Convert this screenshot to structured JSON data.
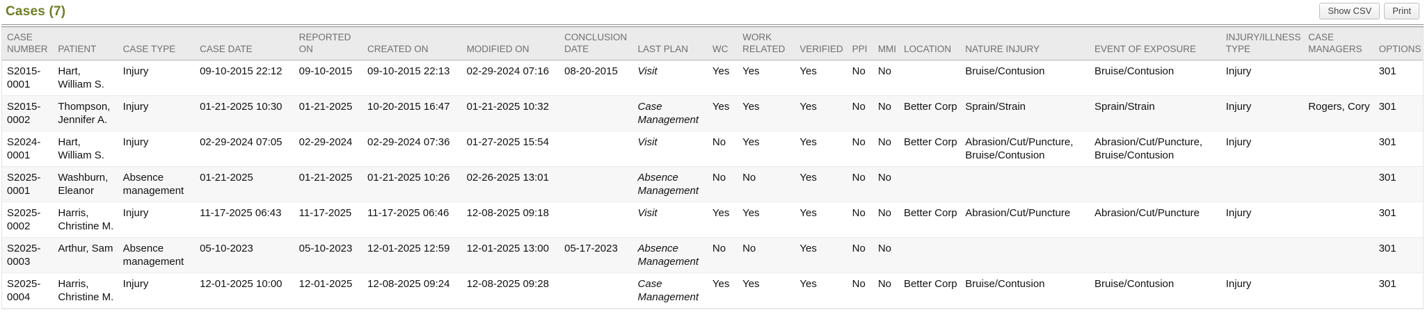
{
  "colors": {
    "title_accent": "#6e7d24"
  },
  "header": {
    "title": "Cases (7)",
    "buttons": [
      {
        "label": "Show CSV"
      },
      {
        "label": "Print"
      }
    ]
  },
  "table": {
    "columns": [
      {
        "key": "case_number",
        "label": "CASE NUMBER"
      },
      {
        "key": "patient",
        "label": "PATIENT"
      },
      {
        "key": "case_type",
        "label": "CASE TYPE"
      },
      {
        "key": "case_date",
        "label": "CASE DATE"
      },
      {
        "key": "reported_on",
        "label": "REPORTED ON"
      },
      {
        "key": "created_on",
        "label": "CREATED ON"
      },
      {
        "key": "modified_on",
        "label": "MODIFIED ON"
      },
      {
        "key": "conclusion_date",
        "label": "CONCLUSION DATE"
      },
      {
        "key": "last_plan",
        "label": "LAST PLAN"
      },
      {
        "key": "wc",
        "label": "WC"
      },
      {
        "key": "work_related",
        "label": "WORK RELATED"
      },
      {
        "key": "verified",
        "label": "VERIFIED"
      },
      {
        "key": "ppi",
        "label": "PPI"
      },
      {
        "key": "mmi",
        "label": "MMI"
      },
      {
        "key": "location",
        "label": "LOCATION"
      },
      {
        "key": "nature_injury",
        "label": "NATURE INJURY"
      },
      {
        "key": "event_of_exposure",
        "label": "EVENT OF EXPOSURE"
      },
      {
        "key": "injury_illness_type",
        "label": "INJURY/ILLNESS TYPE"
      },
      {
        "key": "case_managers",
        "label": "CASE MANAGERS"
      },
      {
        "key": "options",
        "label": "OPTIONS"
      }
    ],
    "rows": [
      {
        "case_number": "S2015-0001",
        "patient": "Hart, William S.",
        "case_type": "Injury",
        "case_date": "09-10-2015 22:12",
        "reported_on": "09-10-2015",
        "created_on": "09-10-2015 22:13",
        "modified_on": "02-29-2024 07:16",
        "conclusion_date": "08-20-2015",
        "last_plan": "Visit",
        "wc": "Yes",
        "work_related": "Yes",
        "verified": "Yes",
        "ppi": "No",
        "mmi": "No",
        "location": "",
        "nature_injury": "Bruise/Contusion",
        "event_of_exposure": "Bruise/Contusion",
        "injury_illness_type": "Injury",
        "case_managers": "",
        "options": "301"
      },
      {
        "case_number": "S2015-0002",
        "patient": "Thompson, Jennifer A.",
        "case_type": "Injury",
        "case_date": "01-21-2025 10:30",
        "reported_on": "01-21-2025",
        "created_on": "10-20-2015 16:47",
        "modified_on": "01-21-2025 10:32",
        "conclusion_date": "",
        "last_plan": "Case Management",
        "wc": "Yes",
        "work_related": "Yes",
        "verified": "Yes",
        "ppi": "No",
        "mmi": "No",
        "location": "Better Corp",
        "nature_injury": "Sprain/Strain",
        "event_of_exposure": "Sprain/Strain",
        "injury_illness_type": "Injury",
        "case_managers": "Rogers, Cory",
        "options": "301"
      },
      {
        "case_number": "S2024-0001",
        "patient": "Hart, William S.",
        "case_type": "Injury",
        "case_date": "02-29-2024 07:05",
        "reported_on": "02-29-2024",
        "created_on": "02-29-2024 07:36",
        "modified_on": "01-27-2025 15:54",
        "conclusion_date": "",
        "last_plan": "Visit",
        "wc": "No",
        "work_related": "Yes",
        "verified": "Yes",
        "ppi": "No",
        "mmi": "No",
        "location": "Better Corp",
        "nature_injury": "Abrasion/Cut/Puncture, Bruise/Contusion",
        "event_of_exposure": "Abrasion/Cut/Puncture, Bruise/Contusion",
        "injury_illness_type": "Injury",
        "case_managers": "",
        "options": "301"
      },
      {
        "case_number": "S2025-0001",
        "patient": "Washburn, Eleanor",
        "case_type": "Absence management",
        "case_date": "01-21-2025",
        "reported_on": "01-21-2025",
        "created_on": "01-21-2025 10:26",
        "modified_on": "02-26-2025 13:01",
        "conclusion_date": "",
        "last_plan": "Absence Management",
        "wc": "No",
        "work_related": "No",
        "verified": "Yes",
        "ppi": "No",
        "mmi": "No",
        "location": "",
        "nature_injury": "",
        "event_of_exposure": "",
        "injury_illness_type": "",
        "case_managers": "",
        "options": "301"
      },
      {
        "case_number": "S2025-0002",
        "patient": "Harris, Christine M.",
        "case_type": "Injury",
        "case_date": "11-17-2025 06:43",
        "reported_on": "11-17-2025",
        "created_on": "11-17-2025 06:46",
        "modified_on": "12-08-2025 09:18",
        "conclusion_date": "",
        "last_plan": "Visit",
        "wc": "Yes",
        "work_related": "Yes",
        "verified": "Yes",
        "ppi": "No",
        "mmi": "No",
        "location": "Better Corp",
        "nature_injury": "Abrasion/Cut/Puncture",
        "event_of_exposure": "Abrasion/Cut/Puncture",
        "injury_illness_type": "Injury",
        "case_managers": "",
        "options": "301"
      },
      {
        "case_number": "S2025-0003",
        "patient": "Arthur, Sam",
        "case_type": "Absence management",
        "case_date": "05-10-2023",
        "reported_on": "05-10-2023",
        "created_on": "12-01-2025 12:59",
        "modified_on": "12-01-2025 13:00",
        "conclusion_date": "05-17-2023",
        "last_plan": "Absence Management",
        "wc": "No",
        "work_related": "No",
        "verified": "Yes",
        "ppi": "No",
        "mmi": "No",
        "location": "",
        "nature_injury": "",
        "event_of_exposure": "",
        "injury_illness_type": "",
        "case_managers": "",
        "options": "301"
      },
      {
        "case_number": "S2025-0004",
        "patient": "Harris, Christine M.",
        "case_type": "Injury",
        "case_date": "12-01-2025 10:00",
        "reported_on": "12-01-2025",
        "created_on": "12-08-2025 09:24",
        "modified_on": "12-08-2025 09:28",
        "conclusion_date": "",
        "last_plan": "Case Management",
        "wc": "Yes",
        "work_related": "Yes",
        "verified": "Yes",
        "ppi": "No",
        "mmi": "No",
        "location": "Better Corp",
        "nature_injury": "Bruise/Contusion",
        "event_of_exposure": "Bruise/Contusion",
        "injury_illness_type": "Injury",
        "case_managers": "",
        "options": "301"
      }
    ]
  }
}
